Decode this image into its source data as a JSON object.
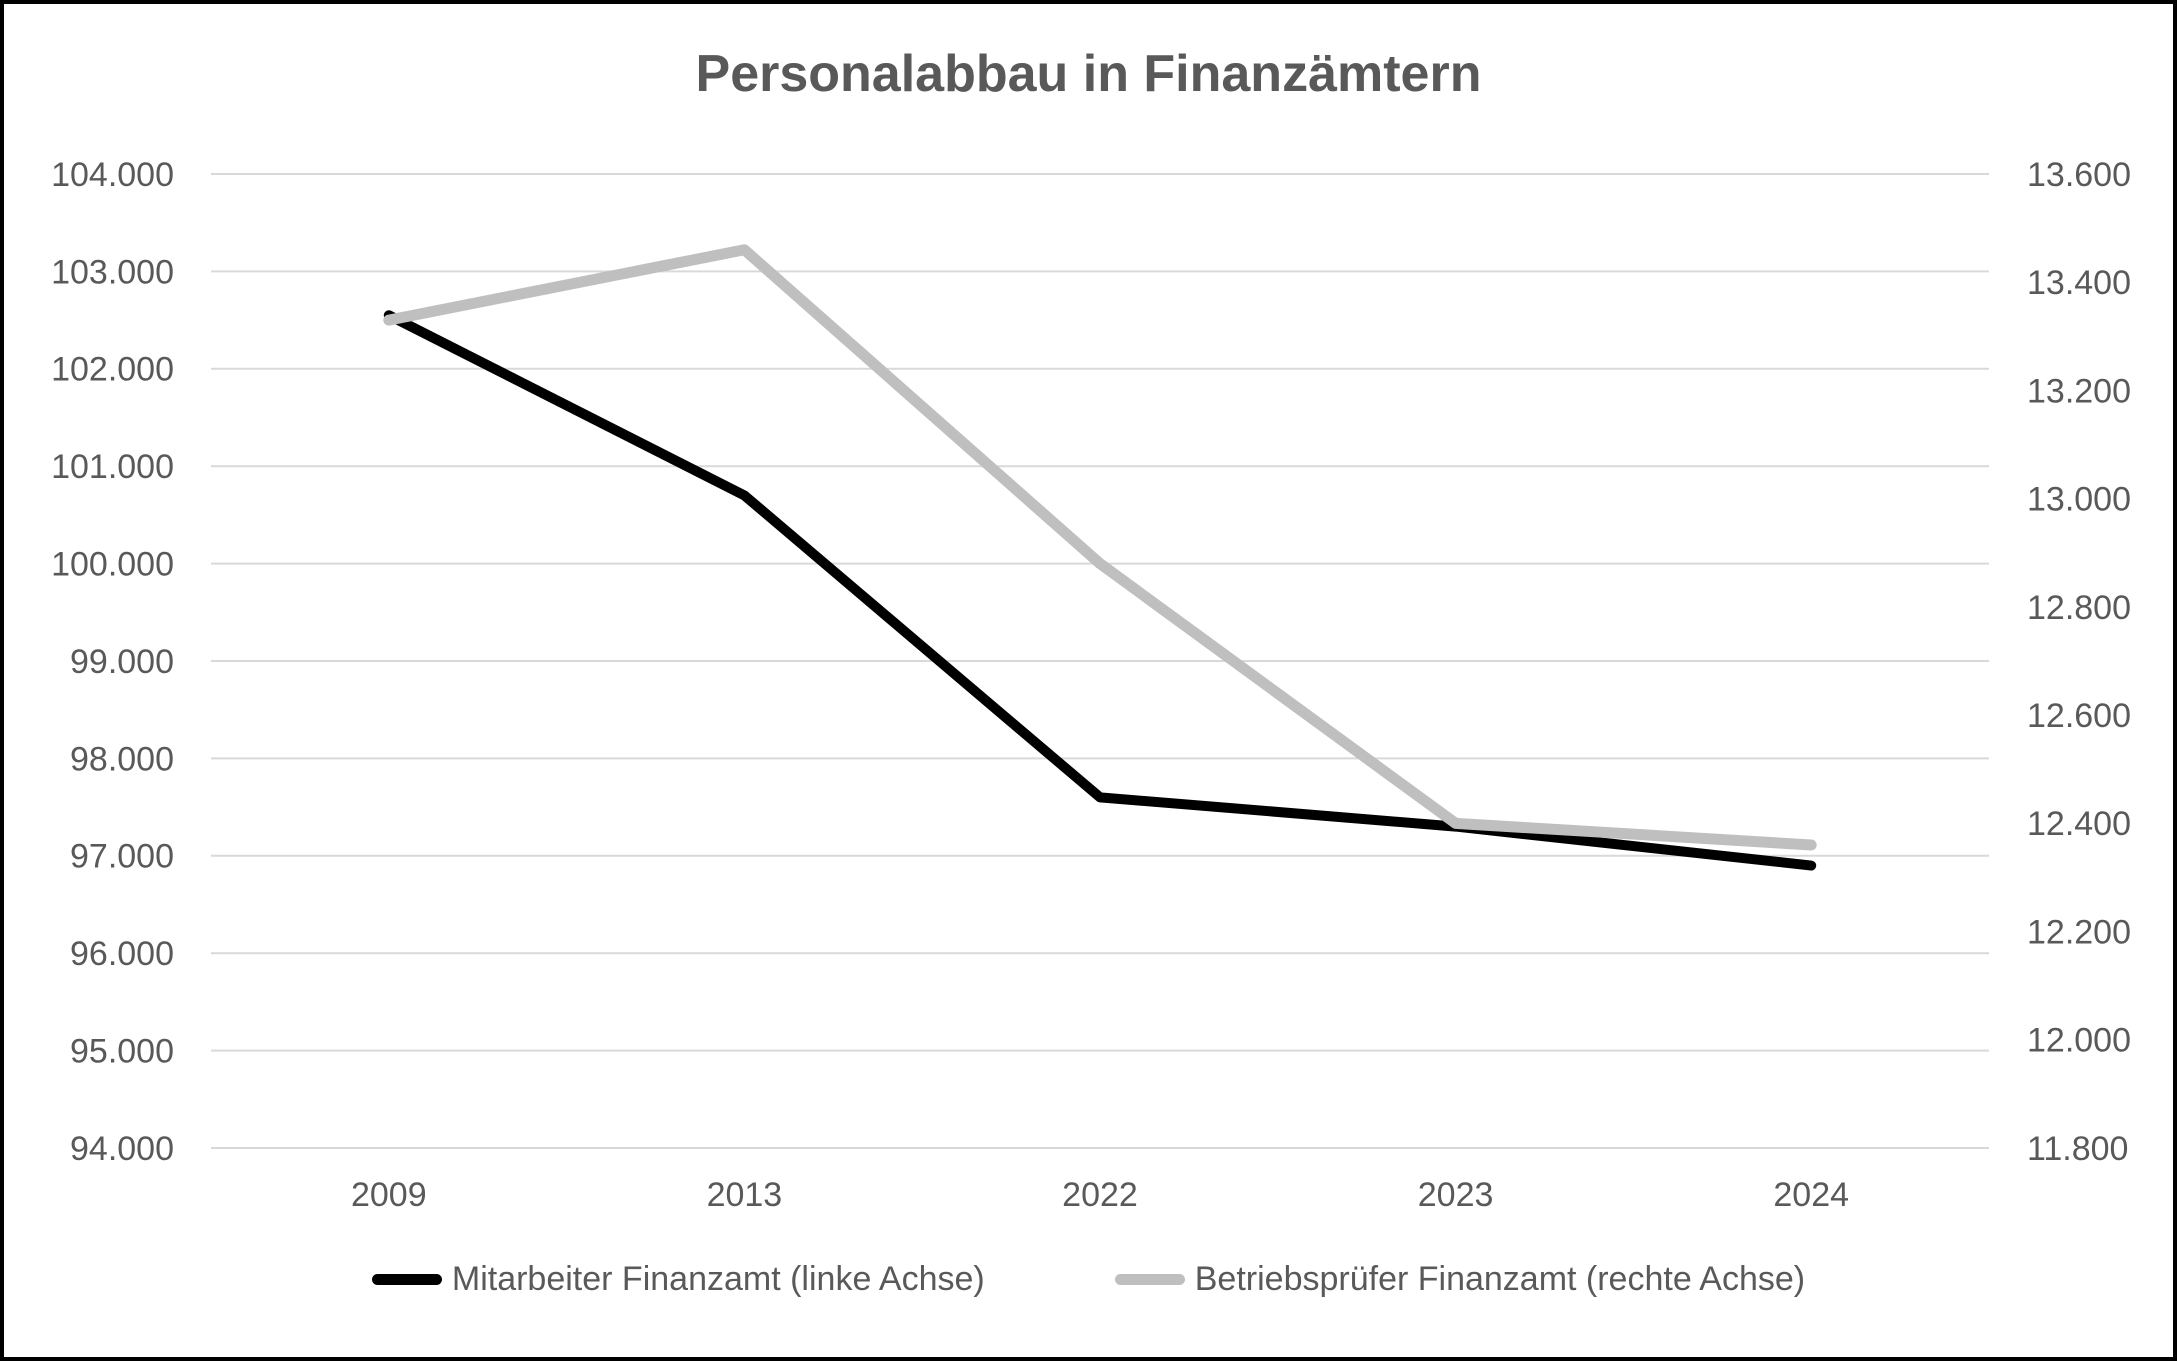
{
  "colors": {
    "text": "#595959",
    "gridline": "#d9d9d9",
    "background": "#ffffff",
    "border": "#000000",
    "series_mitarbeiter": "#000000",
    "series_betriebspruefer": "#bfbfbf"
  },
  "chart_data": {
    "type": "line",
    "title": "Personalabbau in Finanzämtern",
    "categories": [
      "2009",
      "2013",
      "2022",
      "2023",
      "2024"
    ],
    "series": [
      {
        "name": "Mitarbeiter Finanzamt (linke Achse)",
        "axis": "left",
        "color": "#000000",
        "values": [
          102550,
          100700,
          97600,
          97300,
          96900
        ]
      },
      {
        "name": "Betriebsprüfer Finanzamt (rechte Achse)",
        "axis": "right",
        "color": "#bfbfbf",
        "values": [
          13330,
          13460,
          12880,
          12400,
          12360
        ]
      }
    ],
    "left_axis": {
      "min": 94000,
      "max": 104000,
      "step": 1000,
      "ticks_top_to_bottom": [
        "104.000",
        "103.000",
        "102.000",
        "101.000",
        "100.000",
        "99.000",
        "98.000",
        "97.000",
        "96.000",
        "95.000",
        "94.000"
      ]
    },
    "right_axis": {
      "min": 11800,
      "max": 13600,
      "step": 200,
      "ticks_top_to_bottom": [
        "13.600",
        "13.400",
        "13.200",
        "13.000",
        "12.800",
        "12.600",
        "12.400",
        "12.200",
        "12.000",
        "11.800"
      ]
    },
    "grid": true,
    "legend_position": "bottom"
  }
}
